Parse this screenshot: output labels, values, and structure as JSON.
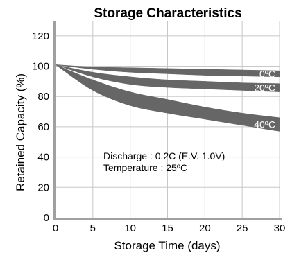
{
  "chart_data": {
    "type": "area",
    "title": "Storage Characteristics",
    "xlabel": "Storage Time (days)",
    "ylabel": "Retained Capacity (%)",
    "xlim": [
      0,
      30
    ],
    "ylim": [
      0,
      130
    ],
    "xticks": [
      "0",
      "5",
      "10",
      "15",
      "20",
      "25",
      "30"
    ],
    "yticks": [
      "0",
      "20",
      "40",
      "60",
      "80",
      "100",
      "120"
    ],
    "grid": true,
    "annotation": [
      "Discharge : 0.2C (E.V. 1.0V)",
      "Temperature : 25ºC"
    ],
    "series": [
      {
        "name": "0ºC",
        "x": [
          0,
          5,
          10,
          15,
          20,
          25,
          30
        ],
        "upper": [
          101,
          99.5,
          99,
          98.5,
          98,
          97.5,
          97
        ],
        "lower": [
          101,
          98,
          96,
          95,
          94,
          93.5,
          93
        ]
      },
      {
        "name": "20ºC",
        "x": [
          0,
          5,
          10,
          15,
          20,
          25,
          30
        ],
        "upper": [
          101,
          96,
          93,
          91,
          90,
          89,
          88.5
        ],
        "lower": [
          101,
          93,
          88,
          86,
          85,
          84,
          83
        ]
      },
      {
        "name": "40ºC",
        "x": [
          0,
          5,
          10,
          15,
          20,
          25,
          30
        ],
        "upper": [
          101,
          91,
          83,
          78,
          73,
          69,
          66
        ],
        "lower": [
          101,
          84,
          74,
          69,
          65,
          61,
          57
        ]
      }
    ],
    "colors": {
      "band": "#666666",
      "grid": "#c8c8c8",
      "axis": "#a0a0a0",
      "band_label": "#ffffff"
    }
  }
}
